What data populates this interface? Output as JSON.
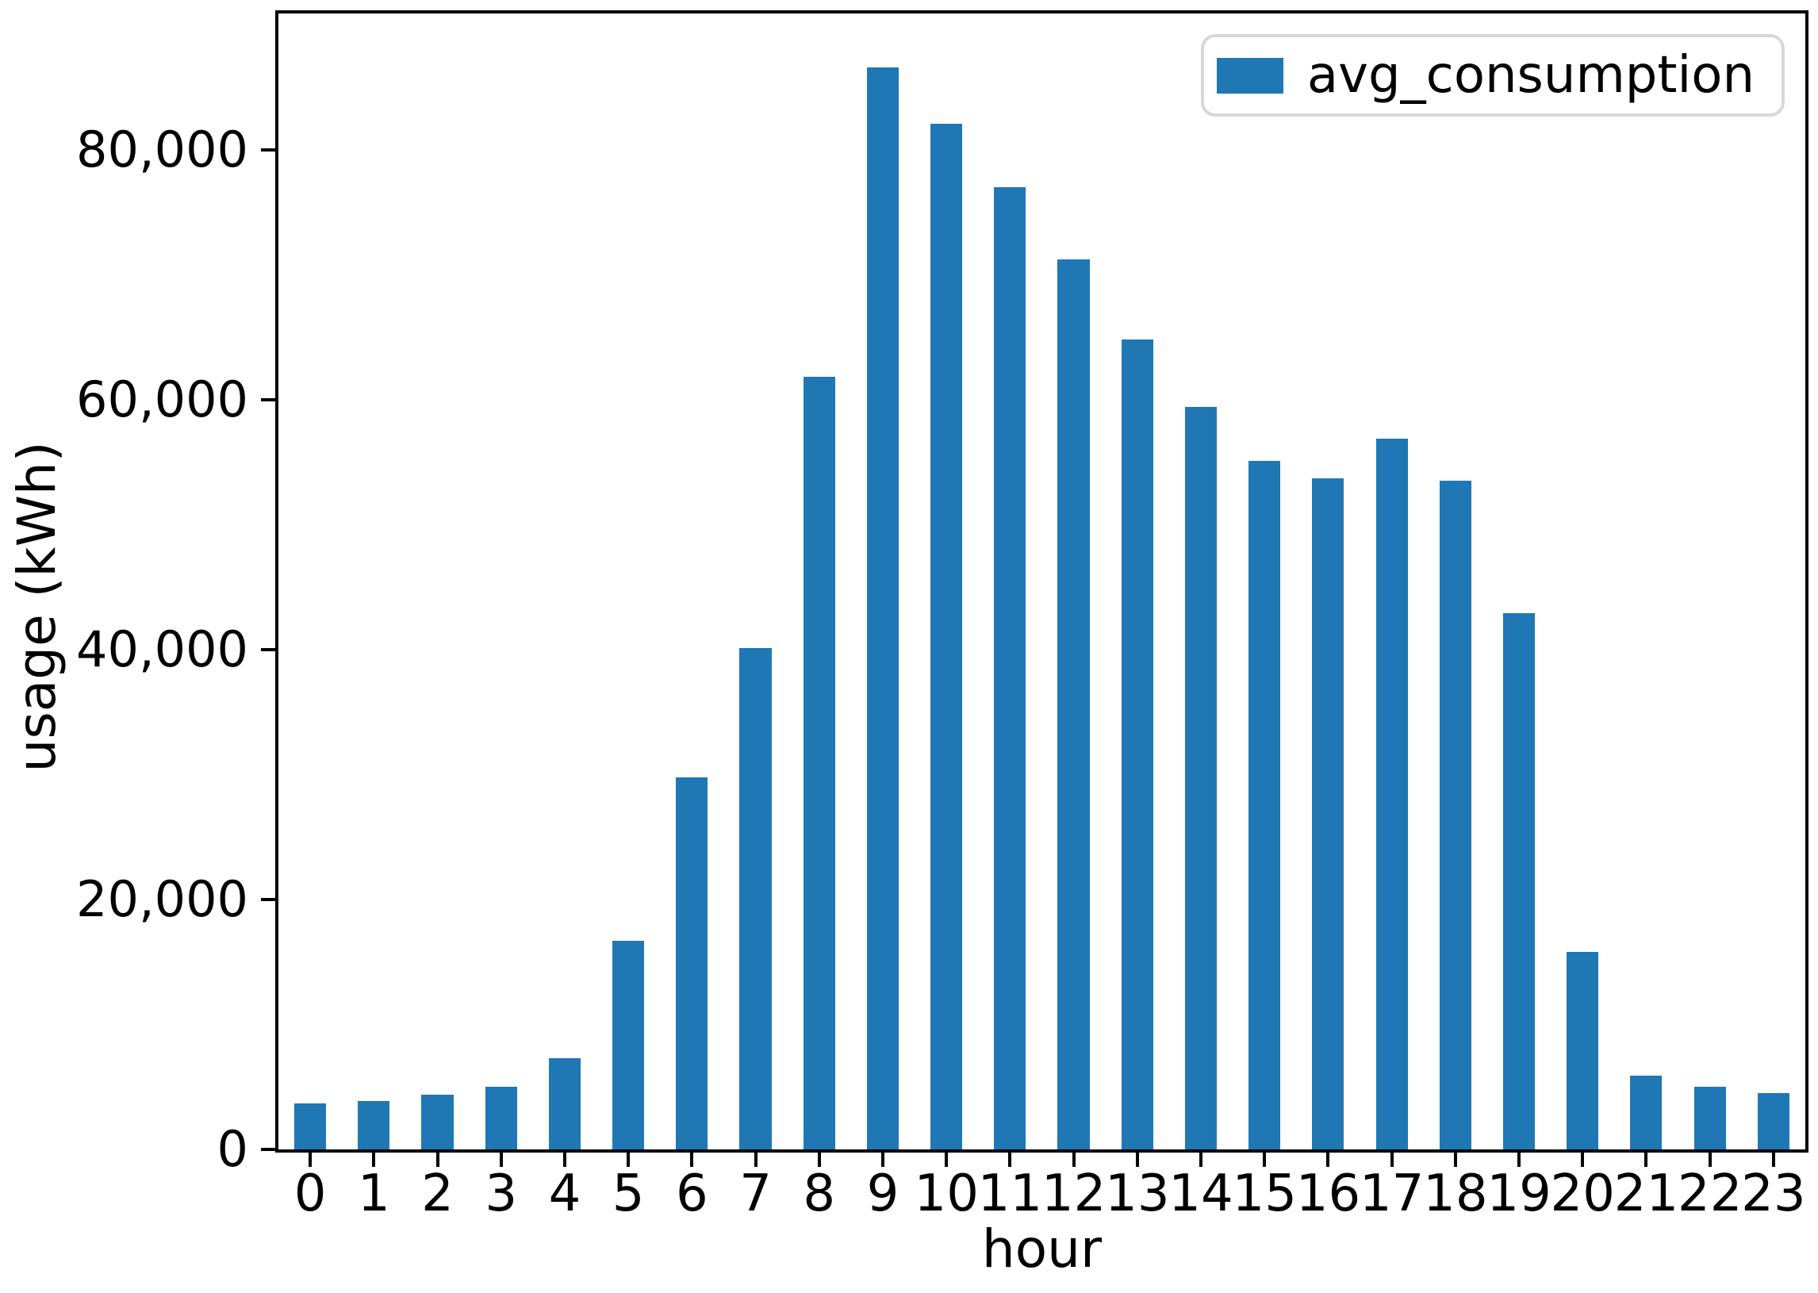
{
  "chart_data": {
    "type": "bar",
    "title": "",
    "xlabel": "hour",
    "ylabel": "usage (kWh)",
    "legend_label": "avg_consumption",
    "legend_position": "upper right",
    "bar_color": "#1f77b4",
    "axis_color": "#000000",
    "categories": [
      "0",
      "1",
      "2",
      "3",
      "4",
      "5",
      "6",
      "7",
      "8",
      "9",
      "10",
      "11",
      "12",
      "13",
      "14",
      "15",
      "16",
      "17",
      "18",
      "19",
      "20",
      "21",
      "22",
      "23"
    ],
    "values": [
      3700,
      3900,
      4400,
      5000,
      7300,
      16700,
      29800,
      40100,
      61800,
      86600,
      82100,
      77000,
      71200,
      64800,
      59400,
      55100,
      53700,
      56900,
      53500,
      42900,
      15800,
      5900,
      5000,
      4500
    ],
    "yticks": [
      0,
      20000,
      40000,
      60000,
      80000
    ],
    "ytick_labels": [
      "0",
      "20,000",
      "40,000",
      "60,000",
      "80,000"
    ],
    "ylim": [
      0,
      90900
    ],
    "grid": false
  }
}
